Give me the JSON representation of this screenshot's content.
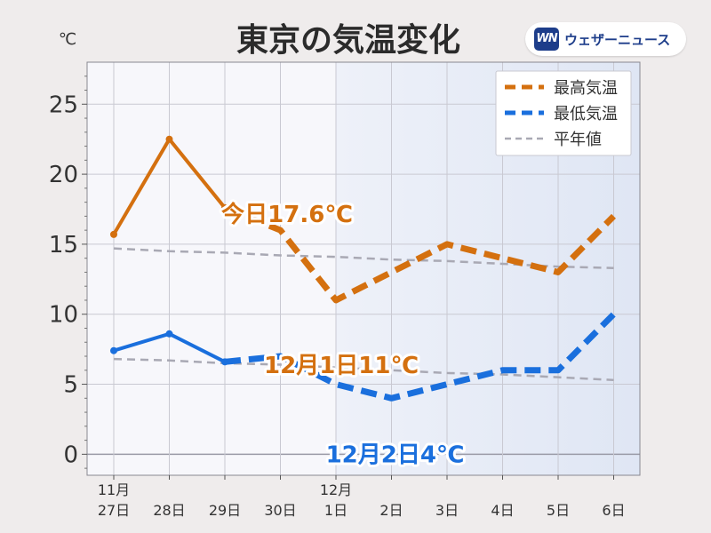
{
  "chart_data": {
    "type": "line",
    "title": "東京の気温変化",
    "ylabel": "℃",
    "ylim": [
      -1.5,
      28
    ],
    "yticks": [
      0,
      5,
      10,
      15,
      20,
      25
    ],
    "categories": [
      {
        "month": "11月",
        "day": "27日"
      },
      {
        "month": "",
        "day": "28日"
      },
      {
        "month": "",
        "day": "29日"
      },
      {
        "month": "",
        "day": "30日"
      },
      {
        "month": "12月",
        "day": "1日"
      },
      {
        "month": "",
        "day": "2日"
      },
      {
        "month": "",
        "day": "3日"
      },
      {
        "month": "",
        "day": "4日"
      },
      {
        "month": "",
        "day": "5日"
      },
      {
        "month": "",
        "day": "6日"
      }
    ],
    "forecast_start_index": 2,
    "forecast_shade_from_index": 4,
    "series": [
      {
        "name": "最高気温",
        "color": "#d4700f",
        "values": [
          15.7,
          22.5,
          17.6,
          16,
          11,
          13,
          15,
          14,
          13,
          17
        ]
      },
      {
        "name": "最低気温",
        "color": "#1a6fdd",
        "values": [
          7.4,
          8.6,
          6.6,
          7,
          5,
          4,
          5,
          6,
          6,
          10
        ]
      },
      {
        "name": "平年値",
        "color": "#a9a9b4",
        "values_high": [
          14.7,
          14.5,
          14.4,
          14.2,
          14.1,
          13.9,
          13.8,
          13.6,
          13.4,
          13.3
        ],
        "values_low": [
          6.8,
          6.7,
          6.5,
          6.4,
          6.2,
          6.0,
          5.8,
          5.7,
          5.5,
          5.3
        ]
      }
    ],
    "annotations": [
      {
        "text": "今日17.6℃",
        "series": 0,
        "index": 2,
        "color": "#d4700f"
      },
      {
        "text": "12月1日11℃",
        "series": 0,
        "index": 4,
        "color": "#d4700f"
      },
      {
        "text": "12月2日4℃",
        "series": 1,
        "index": 5,
        "color": "#1a6fdd"
      }
    ],
    "legend_position": "top-right"
  },
  "logo": {
    "mark": "WN",
    "text": "ウェザーニュース"
  }
}
